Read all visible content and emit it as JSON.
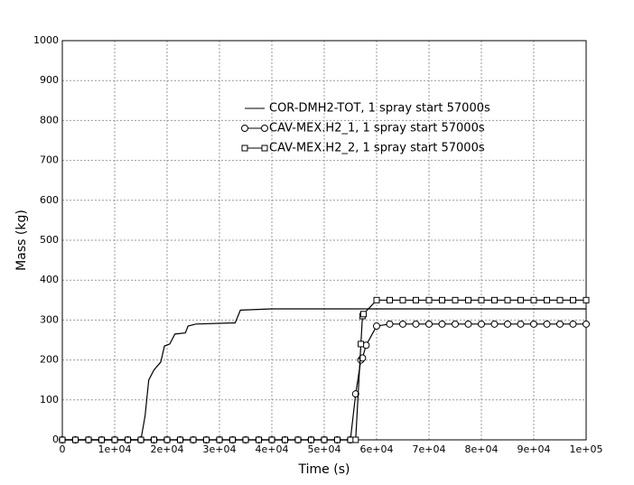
{
  "chart_data": {
    "type": "line",
    "xlabel": "Time (s)",
    "ylabel": "Mass (kg)",
    "xlim": [
      0,
      100000
    ],
    "ylim": [
      0,
      1000
    ],
    "xticks": [
      0,
      {
        "value": 10000,
        "label": "1e+04"
      },
      {
        "value": 20000,
        "label": "2e+04"
      },
      {
        "value": 30000,
        "label": "3e+04"
      },
      {
        "value": 40000,
        "label": "4e+04"
      },
      {
        "value": 50000,
        "label": "5e+04"
      },
      {
        "value": 60000,
        "label": "6e+04"
      },
      {
        "value": 70000,
        "label": "7e+04"
      },
      {
        "value": 80000,
        "label": "8e+04"
      },
      {
        "value": 90000,
        "label": "9e+04"
      },
      {
        "value": 100000,
        "label": "1e+05"
      }
    ],
    "yticks": [
      0,
      100,
      200,
      300,
      400,
      500,
      600,
      700,
      800,
      900,
      1000
    ],
    "grid": true,
    "series": [
      {
        "name": "COR-DMH2-TOT, 1 spray start 57000s",
        "color": "#000000",
        "marker": "none",
        "x": [
          0,
          15000,
          15800,
          16500,
          17500,
          18800,
          19500,
          20500,
          21500,
          23500,
          24000,
          25500,
          33000,
          34000,
          40000,
          100000
        ],
        "values": [
          0,
          0,
          60,
          150,
          175,
          195,
          235,
          240,
          265,
          268,
          285,
          290,
          293,
          325,
          328,
          328
        ]
      },
      {
        "name": "CAV-MEX.H2_1, 1 spray start 57000s",
        "color": "#000000",
        "marker": "circle",
        "x": [
          0,
          2500,
          5000,
          7500,
          10000,
          12500,
          15000,
          17500,
          20000,
          22500,
          25000,
          27500,
          30000,
          32500,
          35000,
          37500,
          40000,
          42500,
          45000,
          47500,
          50000,
          52500,
          55000,
          56000,
          57000,
          57300,
          58000,
          60000,
          62500,
          65000,
          67500,
          70000,
          72500,
          75000,
          77500,
          80000,
          82500,
          85000,
          87500,
          90000,
          92500,
          95000,
          97500,
          100000
        ],
        "values": [
          0,
          0,
          0,
          0,
          0,
          0,
          0,
          0,
          0,
          0,
          0,
          0,
          0,
          0,
          0,
          0,
          0,
          0,
          0,
          0,
          0,
          0,
          0,
          115,
          200,
          205,
          237,
          285,
          290,
          290,
          290,
          290,
          290,
          290,
          290,
          290,
          290,
          290,
          290,
          290,
          290,
          290,
          290,
          290
        ]
      },
      {
        "name": "CAV-MEX.H2_2, 1 spray start 57000s",
        "color": "#000000",
        "marker": "square",
        "x": [
          0,
          2500,
          5000,
          7500,
          10000,
          12500,
          15000,
          17500,
          20000,
          22500,
          25000,
          27500,
          30000,
          32500,
          35000,
          37500,
          40000,
          42500,
          45000,
          47500,
          50000,
          52500,
          55000,
          56000,
          57000,
          57300,
          57500,
          60000,
          62500,
          65000,
          67500,
          70000,
          72500,
          75000,
          77500,
          80000,
          82500,
          85000,
          87500,
          90000,
          92500,
          95000,
          97500,
          100000
        ],
        "values": [
          0,
          0,
          0,
          0,
          0,
          0,
          0,
          0,
          0,
          0,
          0,
          0,
          0,
          0,
          0,
          0,
          0,
          0,
          0,
          0,
          0,
          0,
          0,
          0,
          240,
          310,
          315,
          350,
          350,
          350,
          350,
          350,
          350,
          350,
          350,
          350,
          350,
          350,
          350,
          350,
          350,
          350,
          350,
          350
        ]
      }
    ]
  }
}
